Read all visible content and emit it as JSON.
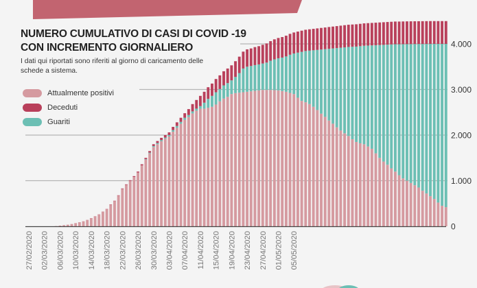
{
  "colors": {
    "positive": "#d59aa0",
    "deceased": "#b9405b",
    "recovered": "#6cbfb4",
    "banner": "#c26470",
    "grid": "#b5b5b5",
    "axis": "#444444",
    "text": "#777777"
  },
  "chart_data": {
    "type": "bar",
    "stacked": true,
    "title": "NUMERO CUMULATIVO DI CASI DI COVID -19 CON INCREMENTO GIORNALIERO",
    "title_lines": [
      "NUMERO CUMULATIVO DI CASI DI COVID -19",
      "CON INCREMENTO GIORNALIERO"
    ],
    "subtitle": "I dati qui riportati sono riferiti al giorno di caricamento delle schede a sistema.",
    "xlabel": "",
    "ylabel": "",
    "ylim": [
      0,
      4500
    ],
    "y_axis_position": "right",
    "y_ticks": [
      0,
      1000,
      2000,
      3000,
      4000
    ],
    "y_tick_labels": [
      "0",
      "1.000",
      "2.000",
      "3.000",
      "4.000"
    ],
    "grid": true,
    "legend_position": "top-left",
    "x_tick_labels": [
      "27/02/2020",
      "02/03/2020",
      "06/03/2020",
      "10/03/2020",
      "14/03/2020",
      "18/03/2020",
      "22/03/2020",
      "26/03/2020",
      "30/03/2020",
      "03/04/2020",
      "07/04/2020",
      "11/04/2020",
      "15/04/2020",
      "19/04/2020",
      "23/04/2020",
      "27/04/2020",
      "01/05/2020",
      "05/05/2020"
    ],
    "categories": [
      "27/02/2020",
      "28/02/2020",
      "29/02/2020",
      "01/03/2020",
      "02/03/2020",
      "03/03/2020",
      "04/03/2020",
      "05/03/2020",
      "06/03/2020",
      "07/03/2020",
      "08/03/2020",
      "09/03/2020",
      "10/03/2020",
      "11/03/2020",
      "12/03/2020",
      "13/03/2020",
      "14/03/2020",
      "15/03/2020",
      "16/03/2020",
      "17/03/2020",
      "18/03/2020",
      "19/03/2020",
      "20/03/2020",
      "21/03/2020",
      "22/03/2020",
      "23/03/2020",
      "24/03/2020",
      "25/03/2020",
      "26/03/2020",
      "27/03/2020",
      "28/03/2020",
      "29/03/2020",
      "30/03/2020",
      "31/03/2020",
      "01/04/2020",
      "02/04/2020",
      "03/04/2020",
      "04/04/2020",
      "05/04/2020",
      "06/04/2020",
      "07/04/2020",
      "08/04/2020",
      "09/04/2020",
      "10/04/2020",
      "11/04/2020",
      "12/04/2020",
      "13/04/2020",
      "14/04/2020",
      "15/04/2020",
      "16/04/2020",
      "17/04/2020",
      "18/04/2020",
      "19/04/2020",
      "20/04/2020",
      "21/04/2020",
      "22/04/2020",
      "23/04/2020",
      "24/04/2020",
      "25/04/2020",
      "26/04/2020",
      "27/04/2020",
      "28/04/2020",
      "29/04/2020",
      "30/04/2020",
      "01/05/2020",
      "02/05/2020",
      "03/05/2020",
      "04/05/2020",
      "05/05/2020",
      "06/05/2020",
      "07/05/2020",
      "08/05/2020",
      "09/05/2020",
      "10/05/2020",
      "11/05/2020",
      "12/05/2020",
      "13/05/2020",
      "14/05/2020",
      "15/05/2020",
      "16/05/2020",
      "17/05/2020",
      "18/05/2020",
      "19/05/2020",
      "20/05/2020",
      "21/05/2020",
      "22/05/2020",
      "23/05/2020",
      "24/05/2020",
      "25/05/2020",
      "26/05/2020",
      "27/05/2020",
      "28/05/2020",
      "29/05/2020",
      "30/05/2020",
      "31/05/2020",
      "01/06/2020",
      "02/06/2020",
      "03/06/2020",
      "04/06/2020",
      "05/06/2020",
      "06/06/2020",
      "07/06/2020",
      "08/06/2020",
      "09/06/2020",
      "10/06/2020",
      "11/06/2020",
      "12/06/2020",
      "13/06/2020"
    ],
    "series": [
      {
        "name": "Attualmente positivi",
        "color_key": "positive",
        "values": [
          0,
          0,
          0,
          0,
          0,
          0,
          0,
          5,
          15,
          25,
          35,
          50,
          70,
          89,
          108,
          138,
          177,
          217,
          256,
          315,
          374,
          473,
          552,
          671,
          820,
          908,
          996,
          1083,
          1180,
          1335,
          1460,
          1600,
          1740,
          1800,
          1865,
          1920,
          1970,
          2075,
          2160,
          2250,
          2335,
          2395,
          2475,
          2535,
          2580,
          2580,
          2600,
          2620,
          2670,
          2740,
          2800,
          2840,
          2900,
          2920,
          2930,
          2940,
          2950,
          2960,
          2970,
          2980,
          2990,
          2990,
          2990,
          2985,
          2980,
          2965,
          2950,
          2925,
          2900,
          2820,
          2750,
          2720,
          2680,
          2620,
          2550,
          2470,
          2400,
          2320,
          2250,
          2170,
          2100,
          2040,
          1980,
          1910,
          1850,
          1820,
          1800,
          1750,
          1700,
          1600,
          1500,
          1420,
          1350,
          1270,
          1200,
          1120,
          1050,
          1000,
          950,
          900,
          850,
          780,
          720,
          660,
          600,
          520,
          450,
          420
        ]
      },
      {
        "name": "Deceduti",
        "color_key": "deceased",
        "values": [
          0,
          0,
          0,
          0,
          0,
          0,
          0,
          0,
          0,
          0,
          0,
          0,
          0,
          1,
          2,
          2,
          3,
          3,
          4,
          5,
          6,
          7,
          8,
          9,
          10,
          12,
          14,
          17,
          20,
          25,
          30,
          35,
          40,
          45,
          50,
          55,
          60,
          70,
          80,
          90,
          100,
          130,
          160,
          190,
          225,
          240,
          255,
          270,
          290,
          300,
          310,
          320,
          330,
          345,
          360,
          370,
          380,
          385,
          395,
          400,
          410,
          420,
          430,
          440,
          445,
          450,
          455,
          458,
          460,
          462,
          464,
          466,
          468,
          470,
          472,
          474,
          476,
          478,
          480,
          482,
          484,
          486,
          487,
          488,
          489,
          490,
          491,
          492,
          493,
          494,
          495,
          496,
          497,
          497,
          498,
          498,
          498,
          499,
          499,
          499,
          499,
          500,
          500,
          500,
          500,
          500,
          500,
          500
        ]
      },
      {
        "name": "Guariti",
        "color_key": "recovered",
        "values": [
          0,
          0,
          0,
          0,
          0,
          0,
          0,
          0,
          0,
          0,
          0,
          0,
          0,
          0,
          0,
          0,
          0,
          0,
          0,
          0,
          0,
          0,
          0,
          0,
          0,
          0,
          0,
          0,
          0,
          0,
          10,
          15,
          20,
          25,
          25,
          25,
          30,
          35,
          40,
          40,
          45,
          45,
          45,
          45,
          55,
          130,
          195,
          240,
          270,
          270,
          290,
          300,
          300,
          355,
          430,
          520,
          550,
          555,
          565,
          570,
          580,
          600,
          640,
          675,
          705,
          735,
          775,
          837,
          890,
          988,
          1076,
          1124,
          1172,
          1240,
          1318,
          1406,
          1484,
          1572,
          1650,
          1738,
          1816,
          1884,
          1953,
          2027,
          2091,
          2130,
          2159,
          2213,
          2267,
          2371,
          2475,
          2559,
          2633,
          2718,
          2792,
          2872,
          2944,
          2995,
          3046,
          3097,
          3148,
          3218,
          3279,
          3340,
          3400,
          3480,
          3550,
          3580
        ]
      }
    ]
  }
}
